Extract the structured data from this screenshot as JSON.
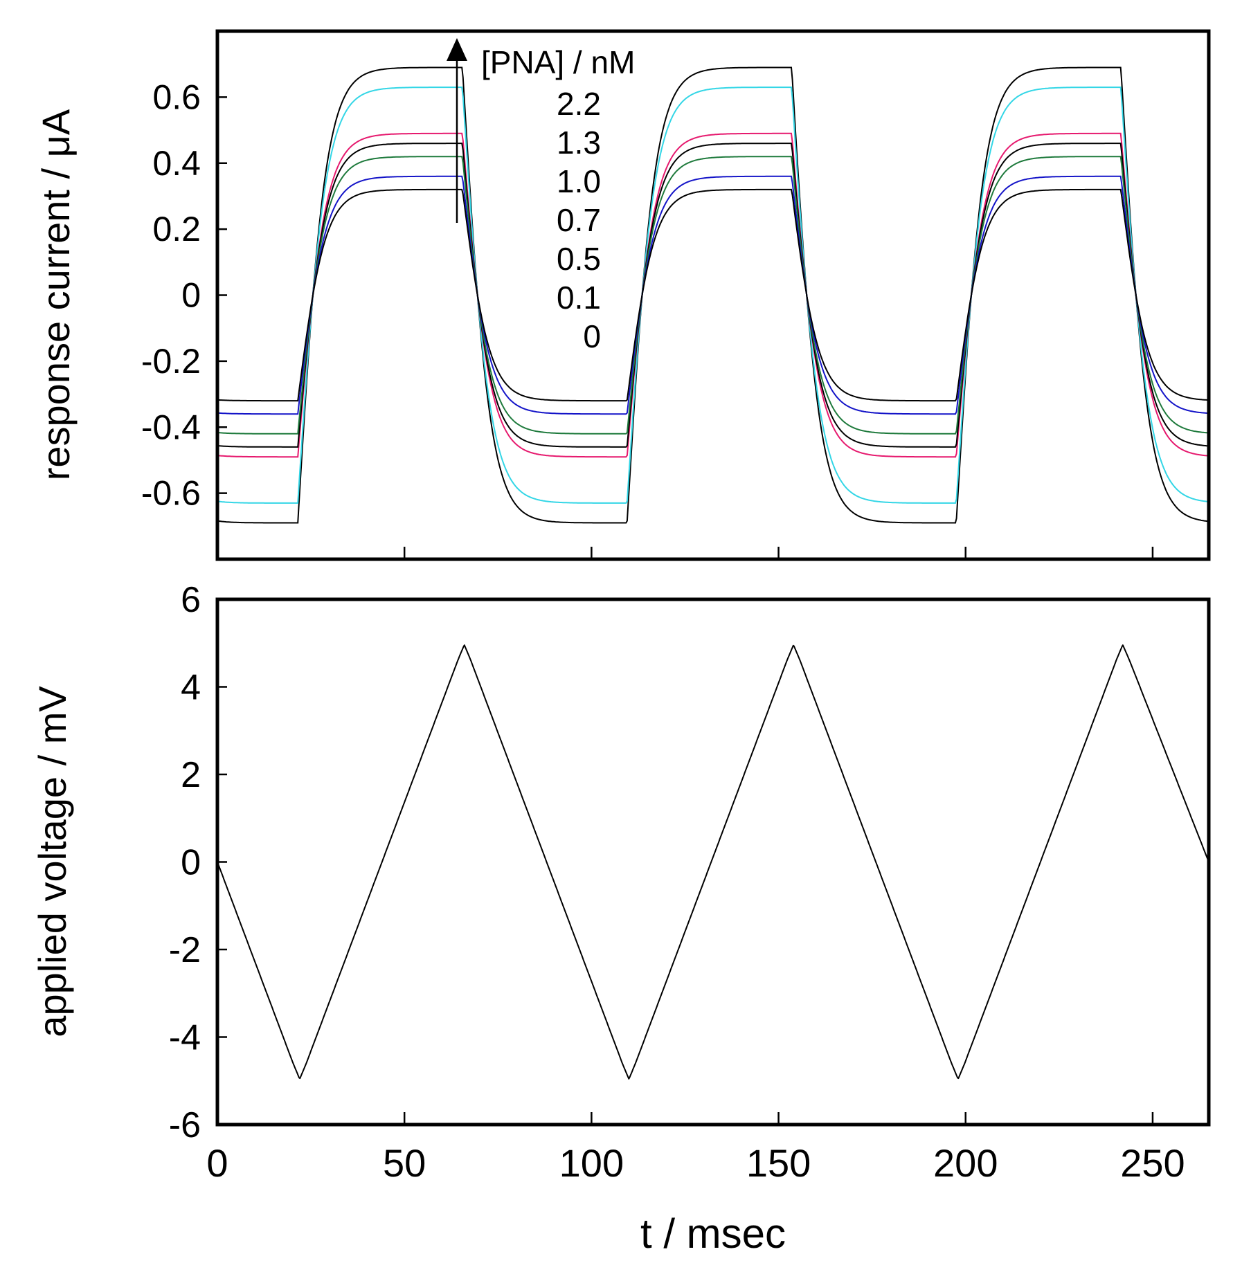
{
  "chart_data": [
    {
      "type": "line",
      "panel": "top",
      "ylabel": "response current / μA",
      "xlabel": "",
      "xlim": [
        0,
        265
      ],
      "ylim": [
        -0.8,
        0.8
      ],
      "yticks": [
        0.6,
        0.4,
        0.2,
        0,
        -0.2,
        -0.4,
        -0.6
      ],
      "ytick_labels": [
        "0.6",
        "0.4",
        "0.2",
        "0",
        "-0.2",
        "-0.4",
        "-0.6"
      ],
      "xticks": [
        50,
        100,
        150,
        200,
        250
      ],
      "legend": {
        "title": "[PNA] / nM",
        "entries": [
          "2.2",
          "1.3",
          "1.0",
          "0.7",
          "0.5",
          "0.1",
          "0"
        ],
        "arrow_direction": "up",
        "placement": "top-center"
      },
      "series": [
        {
          "name": "2.2",
          "color": "#000000",
          "amplitude": 0.69
        },
        {
          "name": "1.3",
          "color": "#33d6e6",
          "amplitude": 0.63
        },
        {
          "name": "1.0",
          "color": "#e6196e",
          "amplitude": 0.49
        },
        {
          "name": "0.7",
          "color": "#000000",
          "amplitude": 0.46
        },
        {
          "name": "0.5",
          "color": "#1e7a3c",
          "amplitude": 0.42
        },
        {
          "name": "0.1",
          "color": "#1414c8",
          "amplitude": 0.36
        },
        {
          "name": "0",
          "color": "#000000",
          "amplitude": 0.32
        }
      ],
      "waveform": {
        "period_ms": 88,
        "peak_times_ms": [
          65.5,
          153.5,
          241.5
        ],
        "trough_times_ms": [
          21.5,
          109.5,
          197.5
        ]
      }
    },
    {
      "type": "line",
      "panel": "bottom",
      "ylabel": "applied voltage / mV",
      "xlabel": "t / msec",
      "xlim": [
        0,
        265
      ],
      "ylim": [
        -6,
        6
      ],
      "yticks": [
        6,
        4,
        2,
        0,
        -2,
        -4,
        -6
      ],
      "ytick_labels": [
        "6",
        "4",
        "2",
        "0",
        "-2",
        "-4",
        "-6"
      ],
      "xticks": [
        0,
        50,
        100,
        150,
        200,
        250
      ],
      "xtick_labels": [
        "0",
        "50",
        "100",
        "150",
        "200",
        "250"
      ],
      "series": [
        {
          "name": "applied voltage",
          "color": "#000000",
          "x": [
            0,
            22,
            66,
            110,
            154,
            198,
            242,
            265
          ],
          "y": [
            0,
            -5,
            5,
            -5,
            5,
            -5,
            5,
            0
          ]
        }
      ]
    }
  ]
}
